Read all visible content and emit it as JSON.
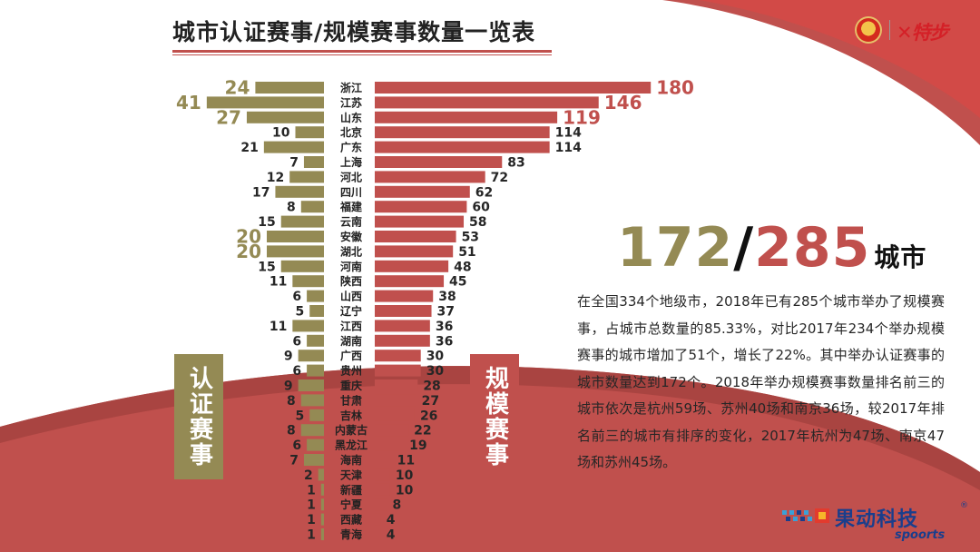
{
  "title": "城市认证赛事/规模赛事数量一览表",
  "stat": {
    "certified_cities": "172",
    "separator": "/",
    "scale_cities": "285",
    "unit": "城市"
  },
  "description": "在全国334个地级市，2018年已有285个城市举办了规模赛事，占城市总数量的85.33%，对比2017年234个举办规模赛事的城市增加了51个，增长了22%。其中举办认证赛事的城市数量达到172个。2018年举办规模赛事数量排名前三的城市依次是杭州59场、苏州40场和南京36场，较2017年排名前三的城市有排序的变化，2017年杭州为47场、南京47场和苏州45场。",
  "left_label": "认证赛事",
  "right_label": "规模赛事",
  "brand": {
    "name": "果动科技",
    "sub": "spoorts",
    "reg": "®"
  },
  "sponsor_logo": "特步",
  "colors": {
    "certified": "#948a54",
    "scale": "#c0504d",
    "bg_band": "#c0504d"
  },
  "chart_data": {
    "type": "bar",
    "categories": [
      "浙江",
      "江苏",
      "山东",
      "北京",
      "广东",
      "上海",
      "河北",
      "四川",
      "福建",
      "云南",
      "安徽",
      "湖北",
      "河南",
      "陕西",
      "山西",
      "辽宁",
      "江西",
      "湖南",
      "广西",
      "贵州",
      "重庆",
      "甘肃",
      "吉林",
      "内蒙古",
      "黑龙江",
      "海南",
      "天津",
      "新疆",
      "宁夏",
      "西藏",
      "青海"
    ],
    "series": [
      {
        "name": "认证赛事",
        "values": [
          24,
          41,
          27,
          10,
          21,
          7,
          12,
          17,
          8,
          15,
          20,
          20,
          15,
          11,
          6,
          5,
          11,
          6,
          9,
          6,
          9,
          8,
          5,
          8,
          6,
          7,
          2,
          1,
          1,
          1,
          1
        ]
      },
      {
        "name": "规模赛事",
        "values": [
          180,
          146,
          119,
          114,
          114,
          83,
          72,
          62,
          60,
          58,
          53,
          51,
          48,
          45,
          38,
          37,
          36,
          36,
          30,
          30,
          28,
          27,
          26,
          22,
          19,
          11,
          10,
          10,
          8,
          4,
          4
        ]
      }
    ],
    "highlighted": {
      "认证赛事": [
        0,
        1,
        2,
        10,
        11
      ],
      "规模赛事": [
        0,
        1,
        2
      ]
    }
  }
}
